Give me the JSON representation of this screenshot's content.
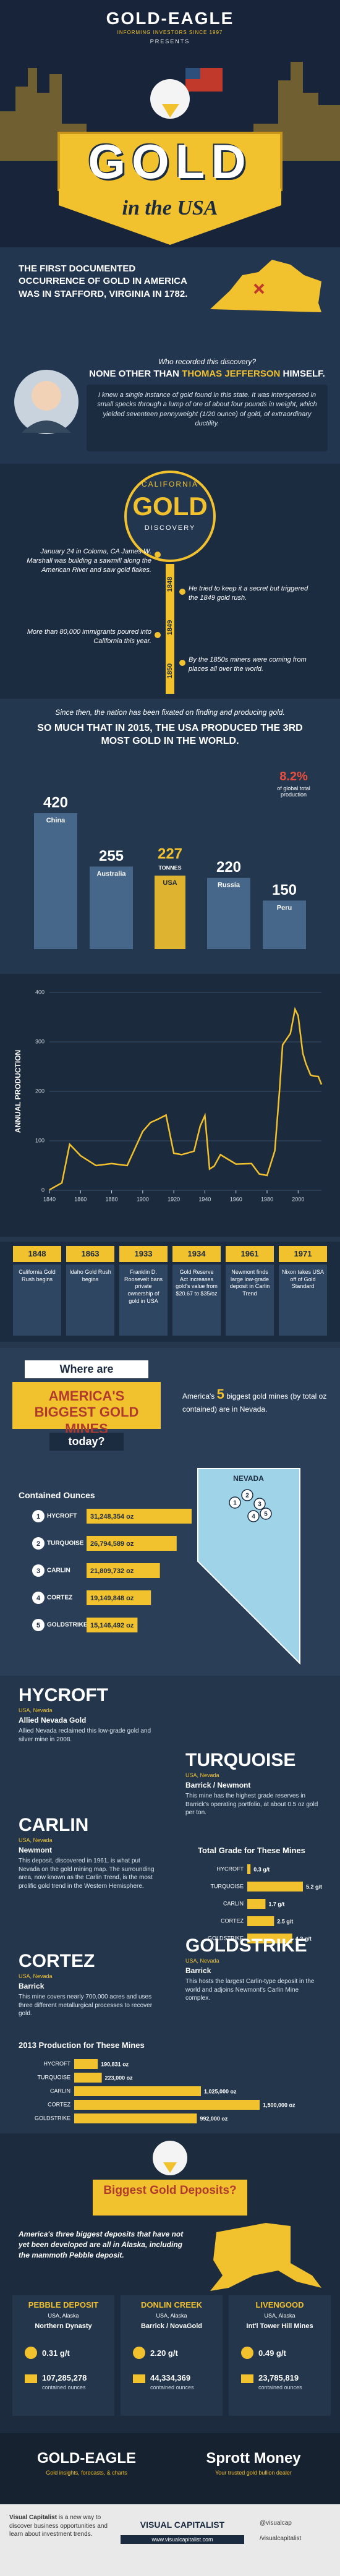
{
  "header": {
    "brand": "GOLD-EAGLE",
    "tagline": "INFORMING INVESTORS SINCE 1997",
    "presents": "PRESENTS",
    "title": "GOLD",
    "subtitle": "in the USA"
  },
  "intro": {
    "headline": "THE FIRST DOCUMENTED OCCURRENCE OF GOLD IN AMERICA WAS IN STAFFORD, VIRGINIA IN 1782.",
    "question": "Who recorded this discovery?",
    "answer_lead": "NONE OTHER THAN",
    "answer_name": "THOMAS JEFFERSON",
    "answer_tail": "HIMSELF.",
    "quote": "I knew a single instance of gold found in this state. It was interspersed in small specks through a lump of ore of about four pounds in weight, which yielded seventeen pennyweight (1/20 ounce) of gold, of extraordinary ductility."
  },
  "california": {
    "title_top": "CALIFORNIA",
    "title_main": "GOLD",
    "title_bottom": "DISCOVERY",
    "years": [
      "1848",
      "1849",
      "1850"
    ],
    "events": [
      "January 24 in Coloma, CA James W. Marshall was building a sawmill along the American River and saw gold flakes.",
      "He tried to keep it a secret but triggered the 1849 gold rush.",
      "More than 80,000 immigrants poured into California this year.",
      "By the 1850s miners were coming from places all over the world."
    ]
  },
  "chart_data": [
    {
      "type": "bar",
      "subtitle": "Since then, the nation has been fixated on finding and producing gold.",
      "title": "SO MUCH THAT IN 2015, THE USA PRODUCED THE 3RD MOST GOLD IN THE WORLD.",
      "categories": [
        "China",
        "Australia",
        "USA",
        "Russia",
        "Peru"
      ],
      "values": [
        420,
        255,
        227,
        220,
        150
      ],
      "unit": "TONNES",
      "share": "8.2%",
      "share_text": "of global total production",
      "colors": [
        "#4a6d91",
        "#4a6d91",
        "#f2c12e",
        "#4a6d91",
        "#4a6d91"
      ]
    },
    {
      "type": "line",
      "ylabel": "ANNUAL PRODUCTION",
      "x": [
        1840,
        1848,
        1853,
        1860,
        1870,
        1880,
        1890,
        1900,
        1905,
        1910,
        1915,
        1920,
        1925,
        1933,
        1937,
        1940,
        1943,
        1946,
        1950,
        1960,
        1970,
        1975,
        1980,
        1985,
        1988,
        1990,
        1995,
        1998,
        2000,
        2003,
        2005,
        2008,
        2010,
        2013,
        2015
      ],
      "values": [
        1,
        15,
        93,
        70,
        50,
        54,
        50,
        119,
        137,
        144,
        152,
        75,
        72,
        79,
        130,
        151,
        43,
        49,
        72,
        53,
        54,
        33,
        30,
        80,
        201,
        294,
        317,
        366,
        353,
        277,
        256,
        233,
        231,
        230,
        214
      ],
      "xlim": [
        1840,
        2015
      ],
      "xticks": [
        1840,
        1860,
        1880,
        1900,
        1920,
        1940,
        1960,
        1980,
        2000
      ],
      "ylim": [
        0,
        400
      ],
      "yticks": [
        0,
        100,
        200,
        300,
        400
      ],
      "color": "#f2c12e",
      "grid": true
    },
    {
      "type": "hbar",
      "title": "Contained Ounces",
      "categories": [
        "HYCROFT",
        "TURQUOISE",
        "CARLIN",
        "CORTEZ",
        "GOLDSTRIKE"
      ],
      "values": [
        31248354,
        26794589,
        21809732,
        19149848,
        15146492
      ],
      "value_labels": [
        "31,248,354 oz",
        "26,794,589 oz",
        "21,809,732 oz",
        "19,149,848 oz",
        "15,146,492 oz"
      ],
      "color": "#f2c12e"
    },
    {
      "type": "hbar",
      "title": "Total Grade for These Mines",
      "categories": [
        "HYCROFT",
        "TURQUOISE",
        "CARLIN",
        "CORTEZ",
        "GOLDSTRIKE"
      ],
      "values": [
        0.3,
        5.2,
        1.7,
        2.5,
        4.2
      ],
      "value_labels": [
        "0.3 g/t",
        "5.2 g/t",
        "1.7 g/t",
        "2.5 g/t",
        "4.2 g/t"
      ],
      "color": "#f2c12e"
    },
    {
      "type": "hbar",
      "title": "2013 Production for These Mines",
      "categories": [
        "HYCROFT",
        "TURQUOISE",
        "CARLIN",
        "CORTEZ",
        "GOLDSTRIKE"
      ],
      "values": [
        190831,
        223000,
        1025000,
        1500000,
        992000
      ],
      "value_labels": [
        "190,831 oz",
        "223,000 oz",
        "1,025,000 oz",
        "1,500,000 oz",
        "992,000 oz"
      ],
      "color": "#f2c12e"
    }
  ],
  "timeline": [
    {
      "year": "1848",
      "text": "California Gold Rush begins"
    },
    {
      "year": "1863",
      "text": "Idaho Gold Rush begins"
    },
    {
      "year": "1933",
      "text": "Franklin D. Roosevelt bans private ownership of gold in USA"
    },
    {
      "year": "1934",
      "text": "Gold Reserve Act increases gold's value from $20.67 to $35/oz"
    },
    {
      "year": "1961",
      "text": "Newmont finds large low-grade deposit in Carlin Trend"
    },
    {
      "year": "1971",
      "text": "Nixon takes USA off of Gold Standard"
    }
  ],
  "mines": {
    "heading_top": "Where are",
    "heading_main": "AMERICA'S BIGGEST GOLD MINES",
    "heading_bottom": "today?",
    "note_lead": "America's",
    "note_number": "5",
    "note_text": "biggest gold mines (by total oz contained) are in Nevada.",
    "map_label": "NEVADA",
    "list": [
      {
        "rank": "1",
        "name": "HYCROFT",
        "location": "USA, Nevada",
        "owner": "Allied Nevada Gold",
        "text": "Allied Nevada reclaimed this low-grade gold and silver mine in 2008."
      },
      {
        "rank": "2",
        "name": "TURQUOISE",
        "location": "USA, Nevada",
        "owner": "Barrick / Newmont",
        "text": "This mine has the highest grade reserves in Barrick's operating portfolio, at about 0.5 oz gold per ton."
      },
      {
        "rank": "3",
        "name": "CARLIN",
        "location": "USA, Nevada",
        "owner": "Newmont",
        "text": "This deposit, discovered in 1961, is what put Nevada on the gold mining map. The surrounding area, now known as the Carlin Trend, is the most prolific gold trend in the Western Hemisphere."
      },
      {
        "rank": "4",
        "name": "CORTEZ",
        "location": "USA, Nevada",
        "owner": "Barrick",
        "text": "This mine covers nearly 700,000 acres and uses three different metallurgical processes to recover gold."
      },
      {
        "rank": "5",
        "name": "GOLDSTRIKE",
        "location": "USA, Nevada",
        "owner": "Barrick",
        "text": "This hosts the largest Carlin-type deposit in the world and adjoins Newmont's Carlin Mine complex."
      }
    ]
  },
  "deposits": {
    "heading": "Biggest Gold Deposits?",
    "lead": "America's three biggest deposits that have not yet been developed are all in Alaska, including the mammoth Pebble deposit.",
    "items": [
      {
        "name": "PEBBLE DEPOSIT",
        "location": "USA, Alaska",
        "owner": "Northern Dynasty",
        "grade": "0.31 g/t",
        "ounces": "107,285,278",
        "ounces_label": "contained ounces"
      },
      {
        "name": "DONLIN CREEK",
        "location": "USA, Alaska",
        "owner": "Barrick / NovaGold",
        "grade": "2.20 g/t",
        "ounces": "44,334,369",
        "ounces_label": "contained ounces"
      },
      {
        "name": "LIVENGOOD",
        "location": "USA, Alaska",
        "owner": "Int'l Tower Hill Mines",
        "grade": "0.49 g/t",
        "ounces": "23,785,819",
        "ounces_label": "contained ounces"
      }
    ]
  },
  "footer": {
    "partner1": "GOLD-EAGLE",
    "partner1_tagline": "Gold insights, forecasts, & charts",
    "partner2": "Sprott Money",
    "partner2_tagline": "Your trusted gold bullion dealer",
    "vc_name": "Visual Capitalist",
    "vc_text": "is a new way to discover business opportunities and learn about investment trends.",
    "vc_brand": "VISUAL CAPITALIST",
    "url": "www.visualcapitalist.com",
    "twitter": "@visualcap",
    "facebook": "/visualcapitalist"
  }
}
